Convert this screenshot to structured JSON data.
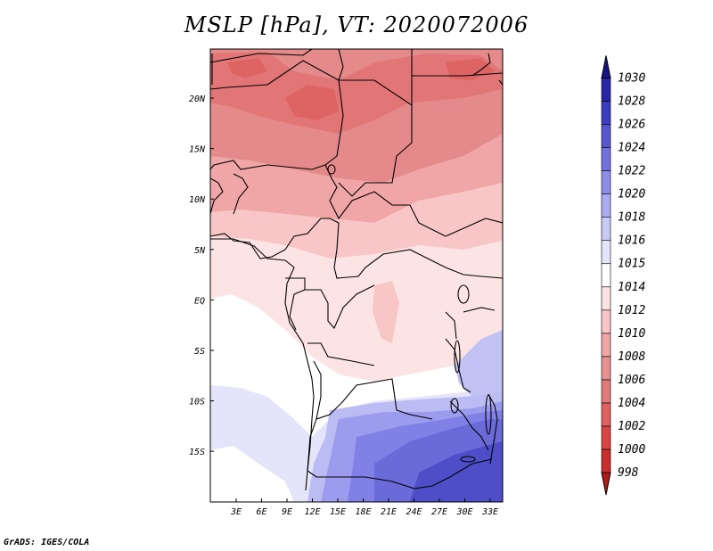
{
  "title": "MSLP [hPa], VT: 2020072006",
  "footer": "GrADS: IGES/COLA",
  "map": {
    "lat_ticks": [
      "20N",
      "15N",
      "10N",
      "5N",
      "EQ",
      "5S",
      "10S",
      "15S"
    ],
    "lon_ticks": [
      "3E",
      "6E",
      "9E",
      "12E",
      "15E",
      "18E",
      "21E",
      "24E",
      "27E",
      "30E",
      "33E"
    ]
  },
  "colorbar": {
    "levels": [
      "998",
      "1000",
      "1002",
      "1004",
      "1006",
      "1008",
      "1010",
      "1012",
      "1014",
      "1015",
      "1016",
      "1018",
      "1020",
      "1022",
      "1024",
      "1026",
      "1028",
      "1030"
    ],
    "colors": [
      "#b51a1a",
      "#c82e2e",
      "#d84545",
      "#e06060",
      "#e27a7a",
      "#e89090",
      "#f0a6a6",
      "#f8c6c6",
      "#fde4e4",
      "#ffffff",
      "#e4e4fa",
      "#cacaf6",
      "#acacf2",
      "#8e8eea",
      "#7272e0",
      "#5656d2",
      "#3c3cc0",
      "#2626a6",
      "#14148c"
    ]
  }
}
